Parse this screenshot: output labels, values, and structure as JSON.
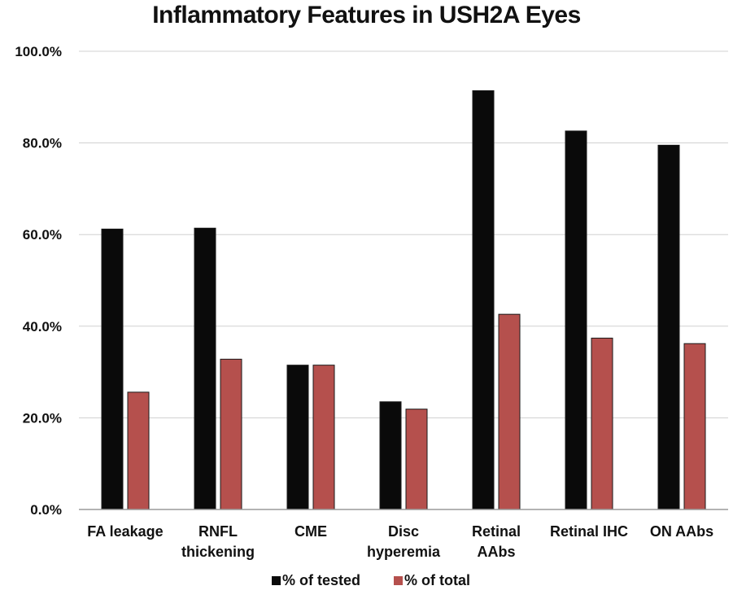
{
  "chart_data": {
    "type": "bar",
    "title": "Inflammatory Features in USH2A Eyes",
    "xlabel": "",
    "ylabel": "",
    "ylim": [
      0,
      100
    ],
    "y_ticks": [
      0,
      20,
      40,
      60,
      80,
      100
    ],
    "y_tick_labels": [
      "0.0%",
      "20.0%",
      "40.0%",
      "60.0%",
      "80.0%",
      "100.0%"
    ],
    "grid": true,
    "legend_position": "bottom-center",
    "categories": [
      [
        "FA leakage"
      ],
      [
        "RNFL",
        "thickening"
      ],
      [
        "CME"
      ],
      [
        "Disc",
        "hyperemia"
      ],
      [
        "Retinal",
        "AAbs"
      ],
      [
        "Retinal IHC"
      ],
      [
        "ON AAbs"
      ]
    ],
    "series": [
      {
        "name": "% of tested",
        "color": "#0a0a0a",
        "values": [
          61.2,
          61.4,
          31.5,
          23.5,
          91.4,
          82.6,
          79.5
        ]
      },
      {
        "name": "% of total",
        "color": "#b5504d",
        "values": [
          25.6,
          32.8,
          31.5,
          21.9,
          42.6,
          37.4,
          36.2
        ]
      }
    ]
  }
}
